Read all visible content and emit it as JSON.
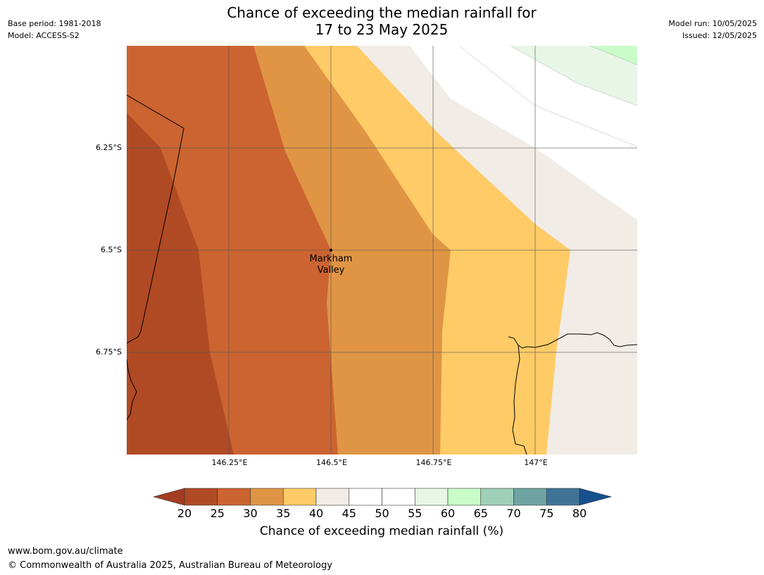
{
  "title": {
    "line1": "Chance of exceeding the median rainfall for",
    "line2": "17 to 23 May 2025"
  },
  "meta_left": {
    "base_period": "Base period: 1981-2018",
    "model": "Model: ACCESS-S2"
  },
  "meta_right": {
    "model_run": "Model run: 10/05/2025",
    "issued": "Issued: 12/05/2025"
  },
  "map": {
    "lat_labels": [
      "6.25°S",
      "6.5°S",
      "6.75°S"
    ],
    "lon_labels": [
      "146.25°E",
      "146.5°E",
      "146.75°E",
      "147°E"
    ],
    "place": {
      "name_line1": "Markham",
      "name_line2": "Valley",
      "lon": 146.5,
      "lat": -6.5
    }
  },
  "colorbar": {
    "ticks": [
      "20",
      "25",
      "30",
      "35",
      "40",
      "45",
      "50",
      "55",
      "60",
      "65",
      "70",
      "75",
      "80"
    ],
    "colors": [
      "#a33d22",
      "#b04a24",
      "#cb6431",
      "#e09545",
      "#fecb67",
      "#f1ece6",
      "#ffffff",
      "#ffffff",
      "#e8f6e8",
      "#c9fcc9",
      "#9fd0b8",
      "#6fa4a4",
      "#3f7497",
      "#16508c"
    ],
    "label": "Chance of exceeding median rainfall (%)"
  },
  "footer": {
    "url": "www.bom.gov.au/climate",
    "copyright": "© Commonwealth of Australia 2025, Australian Bureau of Meteorology"
  }
}
